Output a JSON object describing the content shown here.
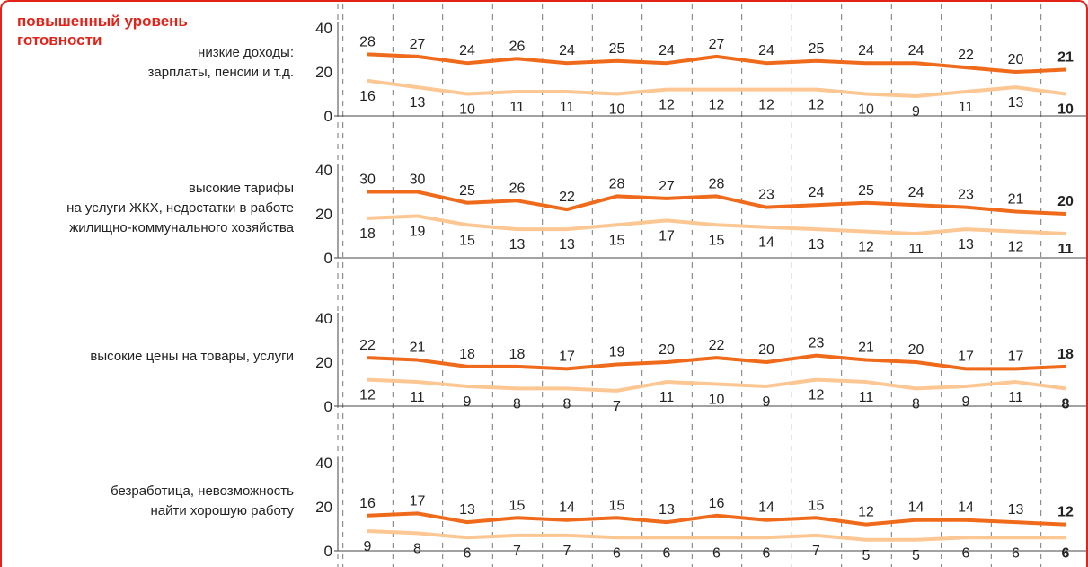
{
  "heading": "повышенный уровень готовности",
  "chart_data": {
    "type": "line",
    "y_ticks": [
      0,
      20,
      40
    ],
    "ylim": [
      0,
      40
    ],
    "grid": "vertical dashed",
    "colors": {
      "dark": "#ef6a1a",
      "light": "#fcc793",
      "accent": "#e2231a"
    },
    "series_names": [
      "dark",
      "light"
    ],
    "panels": [
      {
        "label_lines": [
          "низкие доходы:",
          "зарплаты, пенсии и т.д."
        ],
        "dark": [
          28,
          27,
          24,
          26,
          24,
          25,
          24,
          27,
          24,
          25,
          24,
          24,
          22,
          20,
          21
        ],
        "light": [
          16,
          13,
          10,
          11,
          11,
          10,
          12,
          12,
          12,
          12,
          10,
          9,
          11,
          13,
          10
        ]
      },
      {
        "label_lines": [
          "высокие тарифы",
          "на услуги ЖКХ, недостатки в работе",
          "жилищно-коммунального хозяйства"
        ],
        "dark": [
          30,
          30,
          25,
          26,
          22,
          28,
          27,
          28,
          23,
          24,
          25,
          24,
          23,
          21,
          20
        ],
        "light": [
          18,
          19,
          15,
          13,
          13,
          15,
          17,
          15,
          14,
          13,
          12,
          11,
          13,
          12,
          11
        ]
      },
      {
        "label_lines": [
          "высокие цены на товары, услуги"
        ],
        "dark": [
          22,
          21,
          18,
          18,
          17,
          19,
          20,
          22,
          20,
          23,
          21,
          20,
          17,
          17,
          18
        ],
        "light": [
          12,
          11,
          9,
          8,
          8,
          7,
          11,
          10,
          9,
          12,
          11,
          8,
          9,
          11,
          8
        ]
      },
      {
        "label_lines": [
          "безработица, невозможность",
          "найти хорошую работу"
        ],
        "dark": [
          16,
          17,
          13,
          15,
          14,
          15,
          13,
          16,
          14,
          15,
          12,
          14,
          14,
          13,
          12
        ],
        "light": [
          9,
          8,
          6,
          7,
          7,
          6,
          6,
          6,
          6,
          7,
          5,
          5,
          6,
          6,
          6
        ]
      }
    ]
  }
}
